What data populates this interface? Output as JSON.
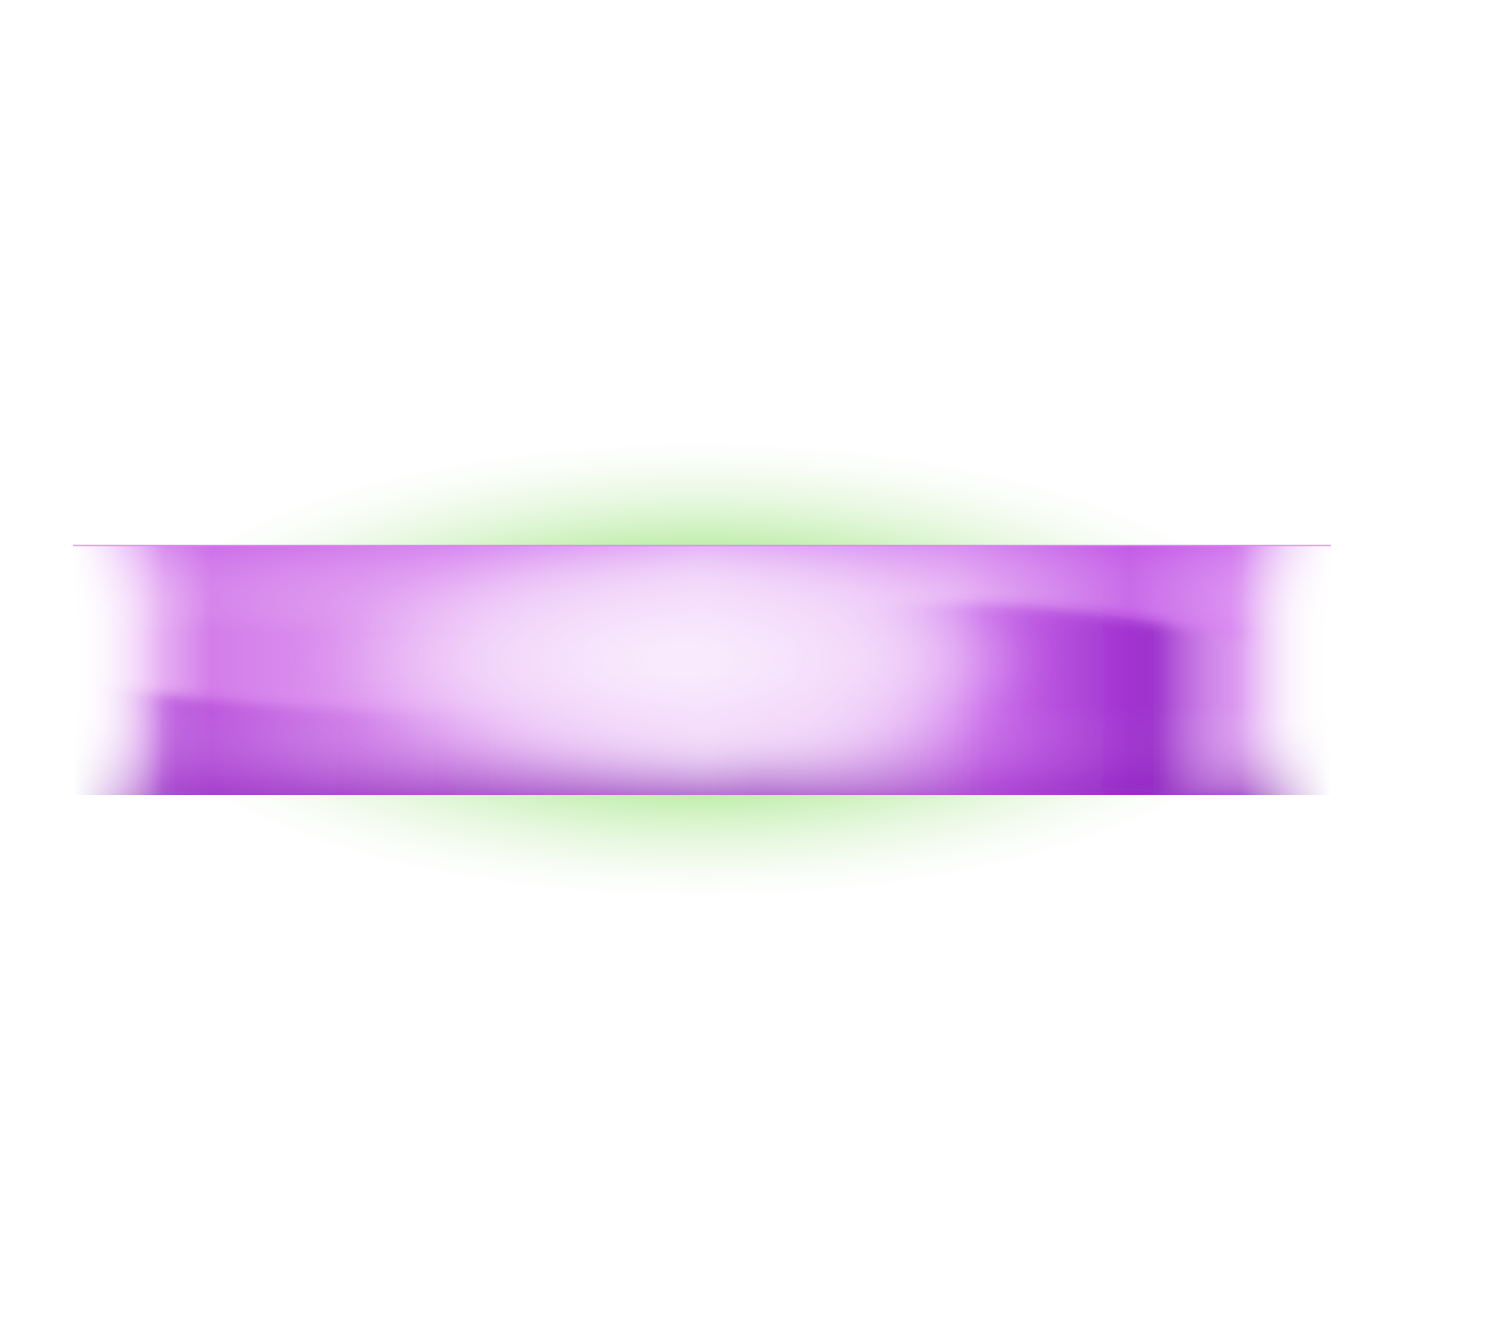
{
  "colors": {
    "background": "#ffffff",
    "glow": "#7ddc5c",
    "glow_core": "#8ee06a",
    "band_light": "#f5e6fb",
    "band_mid": "#d77ff0",
    "band_dark": "#9a22c8",
    "band_edge": "#ffffff"
  }
}
